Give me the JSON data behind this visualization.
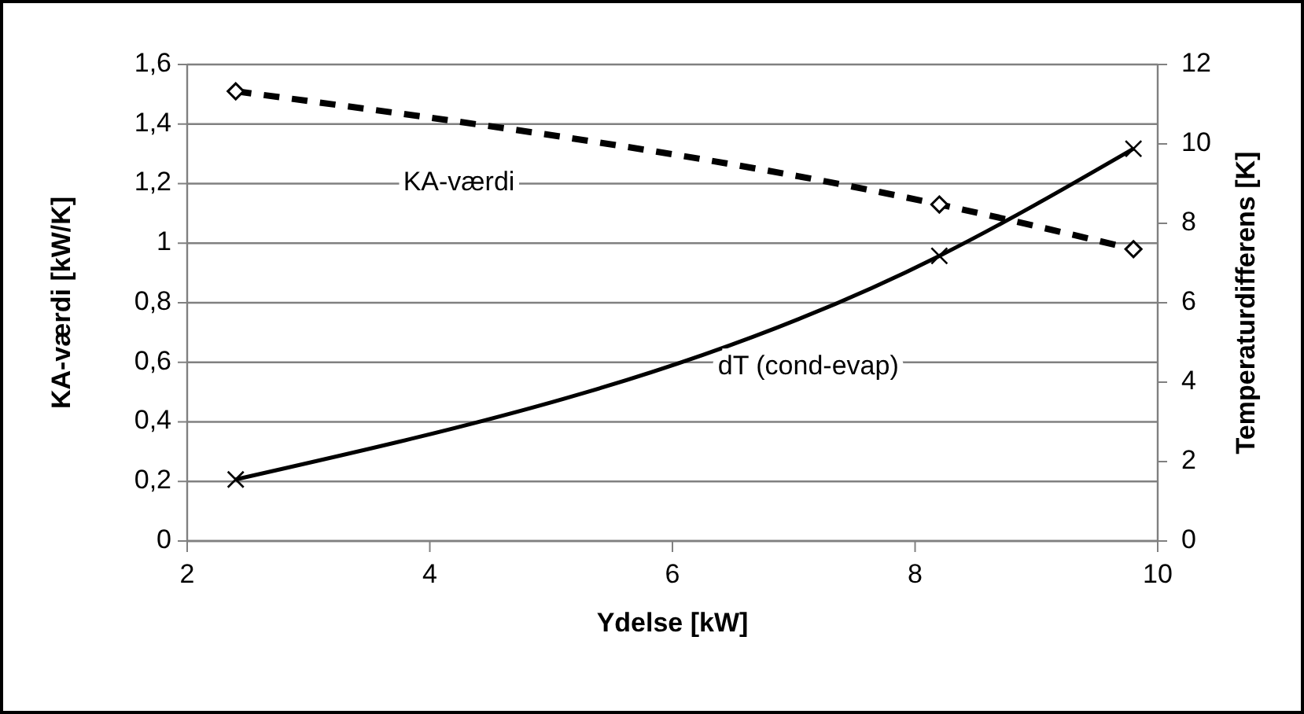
{
  "chart_data": {
    "type": "line",
    "xlabel": "Ydelse [kW]",
    "ylabel": "KA-værdi [kW/K]",
    "y2label": "Temperaturdifferens [K]",
    "xlim": [
      2,
      10
    ],
    "xticks": [
      2,
      4,
      6,
      8,
      10
    ],
    "ylim": [
      0,
      1.6
    ],
    "yticks": [
      0,
      {
        "value": 0.2,
        "label": "0,2"
      },
      {
        "value": 0.4,
        "label": "0,4"
      },
      {
        "value": 0.6,
        "label": "0,6"
      },
      {
        "value": 0.8,
        "label": "0,8"
      },
      1,
      {
        "value": 1.2,
        "label": "1,2"
      },
      {
        "value": 1.4,
        "label": "1,4"
      },
      {
        "value": 1.6,
        "label": "1,6"
      }
    ],
    "y2lim": [
      0,
      12
    ],
    "y2ticks": [
      0,
      2,
      4,
      6,
      8,
      10,
      12
    ],
    "grid": "y",
    "series": [
      {
        "name": "KA-værdi",
        "color": "#000000",
        "x": [
          2.4,
          8.2,
          9.8
        ],
        "values": [
          1.51,
          1.13,
          0.98
        ],
        "marker": "diamond",
        "line_style": "dashed"
      },
      {
        "name": "dT (cond-evap)",
        "color": "#000000",
        "x": [
          2.4,
          8.2,
          9.8
        ],
        "values": [
          1.55,
          7.18,
          9.88
        ],
        "marker": "cross",
        "line_style": "solid",
        "axis": "y2"
      }
    ]
  }
}
